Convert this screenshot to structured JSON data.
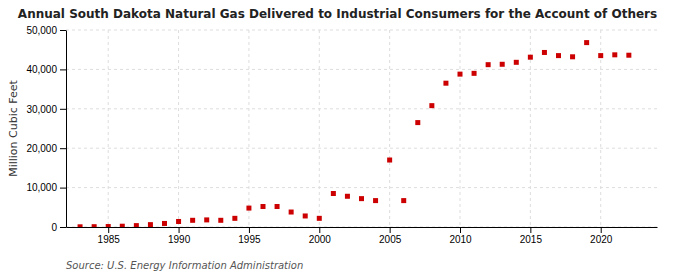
{
  "chart_data": {
    "type": "scatter",
    "title": "Annual South Dakota Natural Gas Delivered to Industrial Consumers for the Account of Others",
    "y_label": "Million Cubic Feet",
    "annotations": [
      "Source: U.S. Energy Information Administration"
    ],
    "color": "#cc0000",
    "marker": "square",
    "x": [
      1983,
      1984,
      1985,
      1986,
      1987,
      1988,
      1989,
      1990,
      1991,
      1992,
      1993,
      1994,
      1995,
      1996,
      1997,
      1998,
      1999,
      2000,
      2001,
      2002,
      2003,
      2004,
      2005,
      2006,
      2007,
      2008,
      2009,
      2010,
      2011,
      2012,
      2013,
      2014,
      2015,
      2016,
      2017,
      2018,
      2019,
      2020,
      2021,
      2022
    ],
    "values": [
      50,
      80,
      120,
      200,
      350,
      600,
      900,
      1400,
      1700,
      1800,
      1700,
      2200,
      4800,
      5200,
      5200,
      3800,
      2800,
      2200,
      8500,
      7800,
      7200,
      6700,
      17000,
      6700,
      26500,
      30800,
      36500,
      38800,
      39000,
      41200,
      41300,
      41800,
      43100,
      44300,
      43500,
      43200,
      46800,
      43500,
      43700,
      43600
    ],
    "xlim": [
      1982,
      2024
    ],
    "xticks": [
      1985,
      1990,
      1995,
      2000,
      2005,
      2010,
      2015,
      2020
    ],
    "ylim": [
      0,
      50000
    ],
    "yticks": [
      0,
      {
        "value": 10000,
        "label": "10,000"
      },
      {
        "value": 20000,
        "label": "20,000"
      },
      {
        "value": 30000,
        "label": "30,000"
      },
      {
        "value": 40000,
        "label": "40,000"
      },
      {
        "value": 50000,
        "label": "50,000"
      }
    ],
    "grid": true
  }
}
